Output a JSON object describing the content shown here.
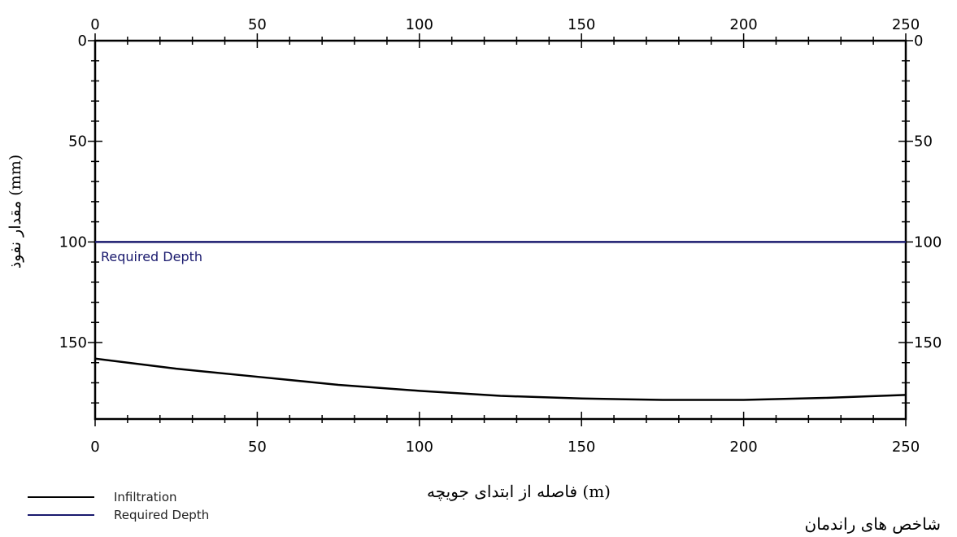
{
  "chart_data": {
    "type": "line",
    "xlabel": "فاصله از ابتدای جویچه (m)",
    "ylabel": "مقدار نفوذ (mm)",
    "caption": "شاخص های راندمان",
    "xlim": [
      0,
      250
    ],
    "ylim": [
      0,
      188
    ],
    "y_inverted": true,
    "x_ticks": [
      0,
      50,
      100,
      150,
      200,
      250
    ],
    "y_ticks": [
      0,
      50,
      100,
      150
    ],
    "grid": false,
    "legend_position": "bottom-left",
    "series": [
      {
        "name": "Infiltration",
        "color": "#000000",
        "x": [
          0,
          25,
          50,
          75,
          100,
          125,
          150,
          175,
          200,
          225,
          250
        ],
        "y": [
          158,
          163,
          167,
          171,
          174,
          176.5,
          177.8,
          178.5,
          178.5,
          177.5,
          176
        ]
      },
      {
        "name": "Required Depth",
        "color": "#1a1a6e",
        "x": [
          0,
          250
        ],
        "y": [
          100,
          100
        ]
      }
    ],
    "annotations": [
      {
        "text": "Required Depth",
        "color": "#1a1a6e"
      }
    ]
  }
}
